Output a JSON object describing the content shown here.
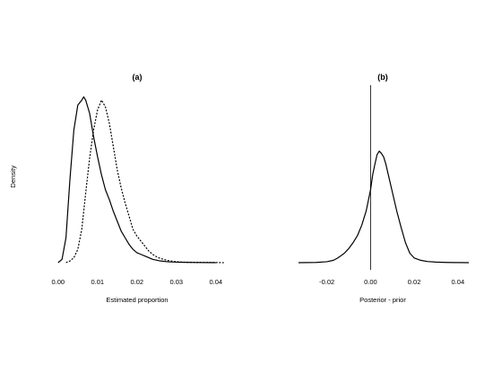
{
  "figure": {
    "shared_ylabel": "Density"
  },
  "chart_data": [
    {
      "type": "line",
      "title": "(a)",
      "xlabel": "Estimated proportion",
      "ylabel": "Density",
      "xlim": [
        -0.002,
        0.043
      ],
      "ylim": [
        0,
        1
      ],
      "xticks": [
        "0.00",
        "0.01",
        "0.02",
        "0.03",
        "0.04"
      ],
      "xtick_values": [
        0,
        0.01,
        0.02,
        0.03,
        0.04
      ],
      "grid": false,
      "legend": "none",
      "series": [
        {
          "style": "solid",
          "x": [
            0.0,
            0.001,
            0.002,
            0.003,
            0.004,
            0.005,
            0.006,
            0.0065,
            0.007,
            0.008,
            0.009,
            0.01,
            0.011,
            0.012,
            0.013,
            0.014,
            0.015,
            0.016,
            0.017,
            0.018,
            0.019,
            0.02,
            0.021,
            0.022,
            0.023,
            0.024,
            0.026,
            0.028,
            0.03,
            0.032,
            0.035,
            0.04
          ],
          "y": [
            0.0,
            0.02,
            0.15,
            0.5,
            0.8,
            0.95,
            0.98,
            1.0,
            0.98,
            0.9,
            0.76,
            0.64,
            0.53,
            0.44,
            0.38,
            0.31,
            0.25,
            0.19,
            0.15,
            0.11,
            0.08,
            0.06,
            0.05,
            0.04,
            0.03,
            0.02,
            0.01,
            0.005,
            0.003,
            0.002,
            0.001,
            0.0
          ]
        },
        {
          "style": "dotted",
          "x": [
            0.002,
            0.003,
            0.004,
            0.005,
            0.006,
            0.007,
            0.008,
            0.009,
            0.01,
            0.011,
            0.012,
            0.013,
            0.014,
            0.015,
            0.016,
            0.017,
            0.018,
            0.019,
            0.02,
            0.021,
            0.022,
            0.023,
            0.024,
            0.025,
            0.026,
            0.028,
            0.03,
            0.032,
            0.035,
            0.04,
            0.042
          ],
          "y": [
            0.0,
            0.01,
            0.03,
            0.08,
            0.2,
            0.42,
            0.63,
            0.8,
            0.92,
            0.98,
            0.94,
            0.84,
            0.7,
            0.56,
            0.45,
            0.36,
            0.28,
            0.2,
            0.16,
            0.13,
            0.1,
            0.07,
            0.05,
            0.035,
            0.025,
            0.012,
            0.006,
            0.003,
            0.002,
            0.001,
            0.0
          ]
        }
      ]
    },
    {
      "type": "line",
      "title": "(b)",
      "xlabel": "Posterior - prior",
      "ylabel": "Density",
      "xlim": [
        -0.033,
        0.045
      ],
      "ylim": [
        0,
        1
      ],
      "xticks": [
        "-0.02",
        "0.00",
        "0.02",
        "0.04"
      ],
      "xtick_values": [
        -0.02,
        0,
        0.02,
        0.04
      ],
      "vline": 0,
      "grid": false,
      "legend": "none",
      "series": [
        {
          "style": "solid",
          "x": [
            -0.033,
            -0.025,
            -0.02,
            -0.017,
            -0.015,
            -0.012,
            -0.01,
            -0.008,
            -0.006,
            -0.004,
            -0.002,
            0.0,
            0.001,
            0.002,
            0.003,
            0.004,
            0.005,
            0.006,
            0.007,
            0.008,
            0.01,
            0.012,
            0.014,
            0.016,
            0.018,
            0.02,
            0.023,
            0.026,
            0.03,
            0.035,
            0.04,
            0.045
          ],
          "y": [
            0.0,
            0.002,
            0.008,
            0.02,
            0.04,
            0.08,
            0.12,
            0.17,
            0.23,
            0.32,
            0.44,
            0.62,
            0.75,
            0.84,
            0.92,
            0.95,
            0.93,
            0.9,
            0.84,
            0.76,
            0.6,
            0.44,
            0.3,
            0.17,
            0.08,
            0.04,
            0.02,
            0.01,
            0.005,
            0.002,
            0.001,
            0.0
          ]
        }
      ]
    }
  ]
}
